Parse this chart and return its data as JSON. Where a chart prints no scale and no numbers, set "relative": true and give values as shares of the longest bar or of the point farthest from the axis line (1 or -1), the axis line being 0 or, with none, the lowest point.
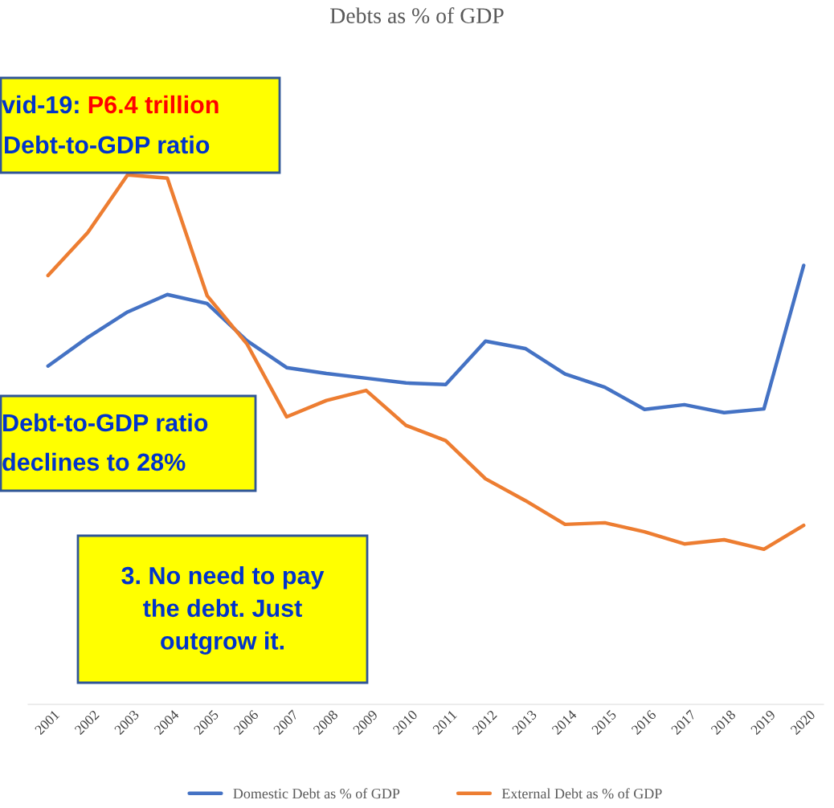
{
  "chart_data": {
    "type": "line",
    "title": "Debts as % of GDP",
    "relative": true,
    "categories": [
      "2001",
      "2002",
      "2003",
      "2004",
      "2005",
      "2006",
      "2007",
      "2008",
      "2009",
      "2010",
      "2011",
      "2012",
      "2013",
      "2014",
      "2015",
      "2016",
      "2017",
      "2018",
      "2019",
      "2020"
    ],
    "series": [
      {
        "name": "Domestic Debt as % of GDP",
        "color": "#4472c4",
        "values": [
          0.639,
          0.693,
          0.741,
          0.774,
          0.757,
          0.687,
          0.636,
          0.625,
          0.616,
          0.607,
          0.604,
          0.686,
          0.672,
          0.624,
          0.599,
          0.557,
          0.566,
          0.551,
          0.558,
          0.829
        ]
      },
      {
        "name": "External Debt as % of GDP",
        "color": "#ed7d31",
        "values": [
          0.81,
          0.891,
          1.0,
          0.994,
          0.772,
          0.681,
          0.543,
          0.574,
          0.593,
          0.527,
          0.498,
          0.426,
          0.385,
          0.34,
          0.343,
          0.326,
          0.303,
          0.311,
          0.293,
          0.338
        ]
      }
    ],
    "legend": "bottom",
    "marker": "none",
    "line_style": "solid",
    "annotations": [
      "vid-19: ",
      "P6.4 trillion",
      "Debt-to-GDP ratio",
      "Debt-to-GDP ratio",
      "declines to 28%",
      "3. No need to pay\nthe debt. Just\noutgrow it."
    ]
  }
}
